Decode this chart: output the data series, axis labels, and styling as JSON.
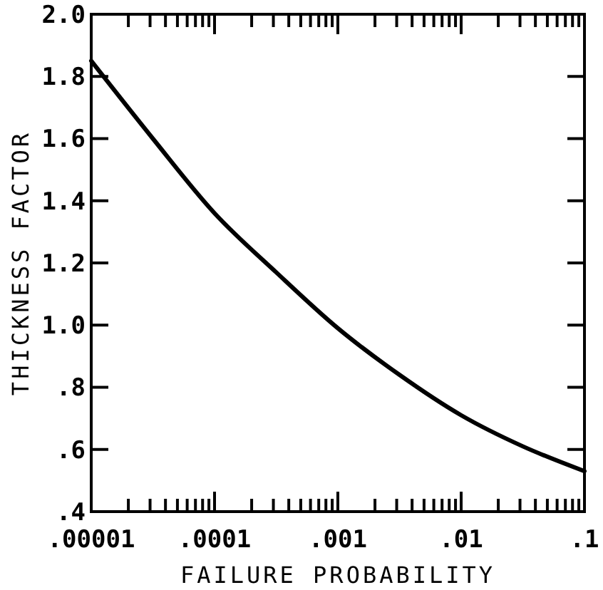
{
  "chart_data": {
    "type": "line",
    "xlabel": "FAILURE PROBABILITY",
    "ylabel": "THICKNESS FACTOR",
    "log": "x",
    "x": [
      1e-05,
      3.16e-05,
      0.0001,
      0.000316,
      0.001,
      0.00316,
      0.01,
      0.0316,
      0.1
    ],
    "series": [
      {
        "color": "#000000",
        "values": [
          1.85,
          1.6,
          1.36,
          1.17,
          0.99,
          0.84,
          0.71,
          0.61,
          0.53
        ]
      }
    ],
    "xlim": [
      1e-05,
      0.1
    ],
    "ylim": [
      0.4,
      2.0
    ],
    "xticks": [
      {
        "value": 1e-05,
        "label": ".00001"
      },
      {
        "value": 2e-05,
        "label": null
      },
      {
        "value": 3e-05,
        "label": null
      },
      {
        "value": 4e-05,
        "label": null
      },
      {
        "value": 5e-05,
        "label": null
      },
      {
        "value": 6e-05,
        "label": null
      },
      {
        "value": 7e-05,
        "label": null
      },
      {
        "value": 8e-05,
        "label": null
      },
      {
        "value": 9e-05,
        "label": null
      },
      {
        "value": 0.0001,
        "label": ".0001"
      },
      {
        "value": 0.0002,
        "label": null
      },
      {
        "value": 0.0003,
        "label": null
      },
      {
        "value": 0.0004,
        "label": null
      },
      {
        "value": 0.0005,
        "label": null
      },
      {
        "value": 0.0006,
        "label": null
      },
      {
        "value": 0.0007,
        "label": null
      },
      {
        "value": 0.0008,
        "label": null
      },
      {
        "value": 0.0009,
        "label": null
      },
      {
        "value": 0.001,
        "label": ".001"
      },
      {
        "value": 0.002,
        "label": null
      },
      {
        "value": 0.003,
        "label": null
      },
      {
        "value": 0.004,
        "label": null
      },
      {
        "value": 0.005,
        "label": null
      },
      {
        "value": 0.006,
        "label": null
      },
      {
        "value": 0.007,
        "label": null
      },
      {
        "value": 0.008,
        "label": null
      },
      {
        "value": 0.009,
        "label": null
      },
      {
        "value": 0.01,
        "label": ".01"
      },
      {
        "value": 0.02,
        "label": null
      },
      {
        "value": 0.03,
        "label": null
      },
      {
        "value": 0.04,
        "label": null
      },
      {
        "value": 0.05,
        "label": null
      },
      {
        "value": 0.06,
        "label": null
      },
      {
        "value": 0.07,
        "label": null
      },
      {
        "value": 0.08,
        "label": null
      },
      {
        "value": 0.09,
        "label": null
      },
      {
        "value": 0.1,
        "label": ".1"
      }
    ],
    "yticks": [
      {
        "value": 0.4,
        "label": ".4"
      },
      {
        "value": 0.6,
        "label": ".6"
      },
      {
        "value": 0.8,
        "label": ".8"
      },
      {
        "value": 1.0,
        "label": "1.0"
      },
      {
        "value": 1.2,
        "label": "1.2"
      },
      {
        "value": 1.4,
        "label": "1.4"
      },
      {
        "value": 1.6,
        "label": "1.6"
      },
      {
        "value": 1.8,
        "label": "1.8"
      },
      {
        "value": 2.0,
        "label": "2.0"
      }
    ],
    "grid": false,
    "marker": "none",
    "line_style": "solid"
  }
}
